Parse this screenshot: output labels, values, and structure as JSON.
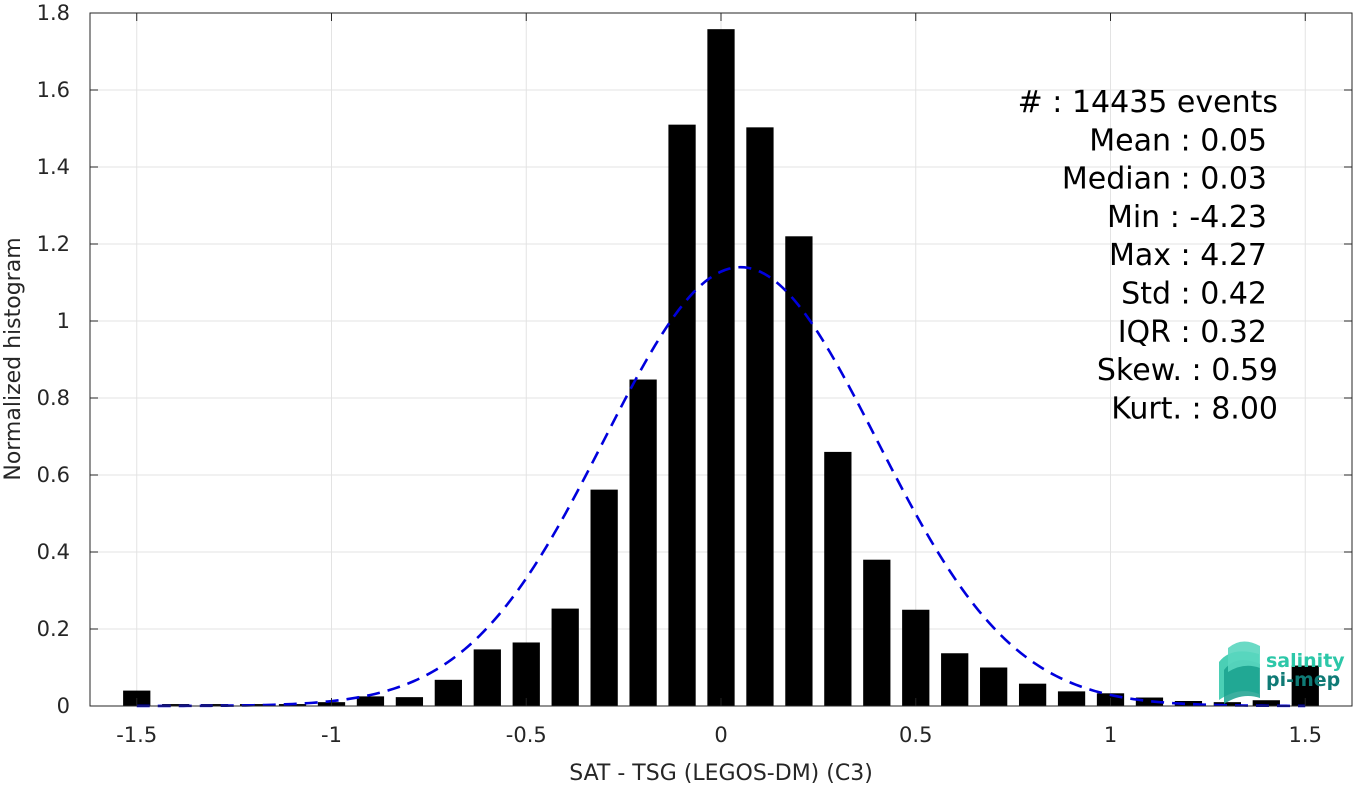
{
  "chart_data": {
    "type": "bar",
    "xlabel": "SAT - TSG (LEGOS-DM) (C3)",
    "ylabel": "Normalized histogram",
    "xlim": [
      -1.62,
      1.62
    ],
    "ylim": [
      0,
      1.8
    ],
    "xticks": [
      -1.5,
      -1,
      -0.5,
      0,
      0.5,
      1,
      1.5
    ],
    "xtick_labels": [
      "-1.5",
      "-1",
      "-0.5",
      "0",
      "0.5",
      "1",
      "1.5"
    ],
    "yticks": [
      0,
      0.2,
      0.4,
      0.6,
      0.8,
      1,
      1.2,
      1.4,
      1.6,
      1.8
    ],
    "ytick_labels": [
      "0",
      "0.2",
      "0.4",
      "0.6",
      "0.8",
      "1",
      "1.2",
      "1.4",
      "1.6",
      "1.8"
    ],
    "grid": true,
    "bar_width": 0.07,
    "bar_color": "#000000",
    "bins": [
      {
        "x": -1.5,
        "y": 0.04
      },
      {
        "x": -1.4,
        "y": 0.005
      },
      {
        "x": -1.3,
        "y": 0.005
      },
      {
        "x": -1.2,
        "y": 0.005
      },
      {
        "x": -1.1,
        "y": 0.005
      },
      {
        "x": -1.0,
        "y": 0.01
      },
      {
        "x": -0.9,
        "y": 0.025
      },
      {
        "x": -0.8,
        "y": 0.023
      },
      {
        "x": -0.7,
        "y": 0.068
      },
      {
        "x": -0.6,
        "y": 0.147
      },
      {
        "x": -0.5,
        "y": 0.165
      },
      {
        "x": -0.4,
        "y": 0.253
      },
      {
        "x": -0.3,
        "y": 0.562
      },
      {
        "x": -0.2,
        "y": 0.848
      },
      {
        "x": -0.1,
        "y": 1.51
      },
      {
        "x": 0.0,
        "y": 1.758
      },
      {
        "x": 0.1,
        "y": 1.503
      },
      {
        "x": 0.2,
        "y": 1.22
      },
      {
        "x": 0.3,
        "y": 0.66
      },
      {
        "x": 0.4,
        "y": 0.38
      },
      {
        "x": 0.5,
        "y": 0.25
      },
      {
        "x": 0.6,
        "y": 0.137
      },
      {
        "x": 0.7,
        "y": 0.1
      },
      {
        "x": 0.8,
        "y": 0.058
      },
      {
        "x": 0.9,
        "y": 0.038
      },
      {
        "x": 1.0,
        "y": 0.033
      },
      {
        "x": 1.1,
        "y": 0.022
      },
      {
        "x": 1.2,
        "y": 0.013
      },
      {
        "x": 1.3,
        "y": 0.01
      },
      {
        "x": 1.4,
        "y": 0.015
      },
      {
        "x": 1.5,
        "y": 0.105
      }
    ],
    "fit_curve": {
      "style": "dashed",
      "color": "#0000dd",
      "distribution": "normal",
      "mean": 0.05,
      "std": 0.35,
      "x_range": [
        -1.5,
        1.5
      ]
    },
    "stats_lines": [
      "#  : 14435 events",
      "Mean : 0.05",
      "Median : 0.03",
      "Min : -4.23",
      "Max : 4.27",
      "Std : 0.42",
      "IQR : 0.32",
      "Skew. : 0.59",
      "Kurt. : 8.00"
    ]
  },
  "logo": {
    "line1": "salinity",
    "line2": "pi-mep",
    "color_light": "#2cc7a8",
    "color_dark": "#0f7a75"
  }
}
